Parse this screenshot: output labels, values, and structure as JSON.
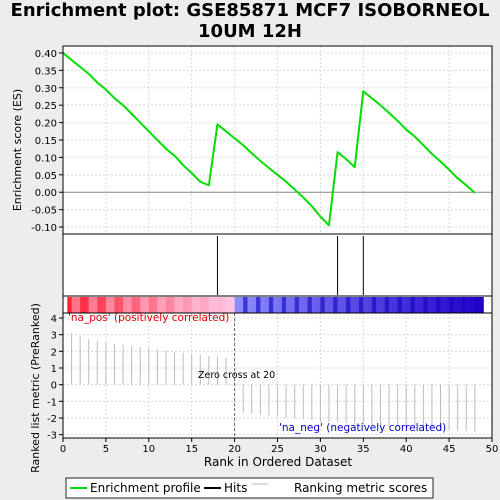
{
  "title_line1": "Enrichment plot: GSE85871 MCF7 ISOBORNEOL",
  "title_line2": "10UM 12H",
  "chart_data": {
    "type": "line",
    "xlabel": "Rank in Ordered Dataset",
    "xlim": [
      0,
      50
    ],
    "x_ticks": [
      "0",
      "5",
      "10",
      "15",
      "20",
      "25",
      "30",
      "35",
      "40",
      "45",
      "50"
    ],
    "top_panel": {
      "ylabel": "Enrichment score (ES)",
      "ylim": [
        -0.12,
        0.42
      ],
      "y_ticks": [
        "0.40",
        "0.35",
        "0.30",
        "0.25",
        "0.20",
        "0.15",
        "0.10",
        "0.05",
        "0.00",
        "-0.05",
        "-0.10"
      ],
      "grid": true,
      "series": [
        {
          "name": "Enrichment profile",
          "color": "#00dd00",
          "points": [
            [
              0,
              0.4
            ],
            [
              1,
              0.38
            ],
            [
              2,
              0.36
            ],
            [
              3,
              0.34
            ],
            [
              4,
              0.315
            ],
            [
              5,
              0.295
            ],
            [
              6,
              0.27
            ],
            [
              7,
              0.25
            ],
            [
              8,
              0.225
            ],
            [
              9,
              0.2
            ],
            [
              10,
              0.175
            ],
            [
              11,
              0.15
            ],
            [
              12,
              0.125
            ],
            [
              13,
              0.105
            ],
            [
              14,
              0.078
            ],
            [
              15,
              0.055
            ],
            [
              16,
              0.03
            ],
            [
              17,
              0.02
            ],
            [
              18,
              0.195
            ],
            [
              19,
              0.175
            ],
            [
              20,
              0.155
            ],
            [
              21,
              0.135
            ],
            [
              22,
              0.112
            ],
            [
              23,
              0.09
            ],
            [
              24,
              0.07
            ],
            [
              25,
              0.05
            ],
            [
              26,
              0.03
            ],
            [
              27,
              0.008
            ],
            [
              28,
              -0.015
            ],
            [
              29,
              -0.04
            ],
            [
              30,
              -0.07
            ],
            [
              31,
              -0.095
            ],
            [
              32,
              0.115
            ],
            [
              33,
              0.095
            ],
            [
              34,
              0.072
            ],
            [
              35,
              0.29
            ],
            [
              36,
              0.27
            ],
            [
              37,
              0.25
            ],
            [
              38,
              0.228
            ],
            [
              39,
              0.205
            ],
            [
              40,
              0.18
            ],
            [
              41,
              0.16
            ],
            [
              42,
              0.135
            ],
            [
              43,
              0.11
            ],
            [
              44,
              0.088
            ],
            [
              45,
              0.065
            ],
            [
              46,
              0.04
            ],
            [
              47,
              0.02
            ],
            [
              48,
              -0.002
            ]
          ]
        }
      ]
    },
    "hits": {
      "name": "Hits",
      "positions": [
        18,
        32,
        35
      ]
    },
    "bottom_panel": {
      "ylabel": "Ranked list metric (PreRanked)",
      "ylim": [
        -3.2,
        4.3
      ],
      "y_ticks": [
        "4",
        "3",
        "2",
        "1",
        "0",
        "-1",
        "-2",
        "-3"
      ],
      "grid": true,
      "series": [
        {
          "name": "Ranking metric scores",
          "color": "#bbbbbb",
          "points": [
            [
              1,
              3.1
            ],
            [
              2,
              2.9
            ],
            [
              3,
              2.75
            ],
            [
              4,
              2.65
            ],
            [
              5,
              2.55
            ],
            [
              6,
              2.45
            ],
            [
              7,
              2.4
            ],
            [
              8,
              2.3
            ],
            [
              9,
              2.25
            ],
            [
              10,
              2.2
            ],
            [
              11,
              2.1
            ],
            [
              12,
              2.05
            ],
            [
              13,
              1.98
            ],
            [
              14,
              1.92
            ],
            [
              15,
              1.85
            ],
            [
              16,
              1.8
            ],
            [
              17,
              1.72
            ],
            [
              18,
              1.68
            ],
            [
              19,
              1.6
            ],
            [
              21,
              -1.7
            ],
            [
              22,
              -1.75
            ],
            [
              23,
              -1.8
            ],
            [
              24,
              -1.85
            ],
            [
              25,
              -1.92
            ],
            [
              26,
              -1.98
            ],
            [
              27,
              -2.02
            ],
            [
              28,
              -2.08
            ],
            [
              29,
              -2.12
            ],
            [
              30,
              -2.18
            ],
            [
              31,
              -2.22
            ],
            [
              32,
              -2.25
            ],
            [
              33,
              -2.3
            ],
            [
              34,
              -2.35
            ],
            [
              35,
              -2.4
            ],
            [
              36,
              -2.45
            ],
            [
              37,
              -2.5
            ],
            [
              38,
              -2.52
            ],
            [
              39,
              -2.55
            ],
            [
              40,
              -2.58
            ],
            [
              41,
              -2.62
            ],
            [
              42,
              -2.65
            ],
            [
              43,
              -2.68
            ],
            [
              44,
              -2.7
            ],
            [
              45,
              -2.72
            ],
            [
              46,
              -2.75
            ],
            [
              47,
              -2.78
            ],
            [
              48,
              -2.82
            ]
          ]
        }
      ],
      "annotations": {
        "pos_label": "'na_pos' (positively correlated)",
        "neg_label": "'na_neg' (negatively correlated)",
        "zero_cross": "Zero cross at 20",
        "zero_cross_x": 20
      }
    },
    "colorbar": {
      "positive_end": "#ff0000",
      "negative_end": "#0000cc"
    },
    "legend": {
      "placement": "bottom",
      "entries": [
        {
          "label": "Enrichment profile",
          "color": "#00dd00"
        },
        {
          "label": "Hits",
          "color": "#000000"
        },
        {
          "label": "Ranking metric scores",
          "color": "#bbbbbb"
        }
      ]
    }
  }
}
